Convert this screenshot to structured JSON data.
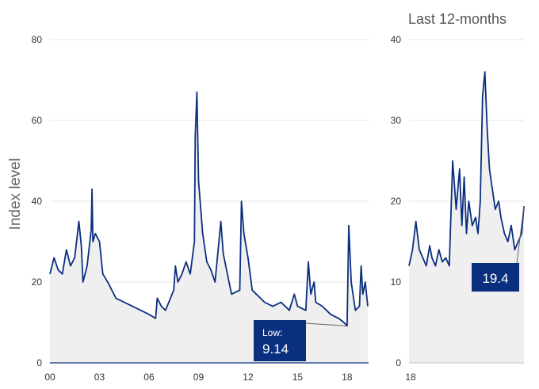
{
  "chart_data": [
    {
      "type": "area",
      "ylabel": "Index level",
      "ylim": [
        0,
        80
      ],
      "y_ticks": [
        "0",
        "20",
        "40",
        "60",
        "80"
      ],
      "x_tick_labels": [
        "00",
        "03",
        "06",
        "09",
        "12",
        "15",
        "18"
      ],
      "grid": "horizontal",
      "colors": {
        "line": "#0b2f7f",
        "fill": "#efefef",
        "callout": "#0b2f7f"
      },
      "annotation": {
        "label": "Low:",
        "value": "9.14"
      },
      "series": [
        {
          "x": [
            2000.0,
            2000.25,
            2000.5,
            2000.75,
            2001.0,
            2001.25,
            2001.5,
            2001.75,
            2001.9,
            2002.0,
            2002.25,
            2002.5,
            2002.55,
            2002.6,
            2002.75,
            2003.0,
            2003.2,
            2003.5,
            2003.75,
            2004.0,
            2004.5,
            2005.0,
            2005.5,
            2006.0,
            2006.4,
            2006.5,
            2006.75,
            2007.0,
            2007.5,
            2007.6,
            2007.75,
            2008.0,
            2008.25,
            2008.5,
            2008.75,
            2008.8,
            2008.9,
            2009.0,
            2009.25,
            2009.5,
            2009.75,
            2010.0,
            2010.35,
            2010.5,
            2010.75,
            2011.0,
            2011.5,
            2011.6,
            2011.75,
            2012.0,
            2012.25,
            2012.5,
            2012.75,
            2013.0,
            2013.5,
            2014.0,
            2014.5,
            2014.8,
            2015.0,
            2015.5,
            2015.65,
            2015.8,
            2016.0,
            2016.1,
            2016.5,
            2016.75,
            2017.0,
            2017.5,
            2017.8,
            2018.0,
            2018.1,
            2018.25,
            2018.5,
            2018.75,
            2018.85,
            2018.95,
            2019.1,
            2019.25
          ],
          "values": [
            22,
            26,
            23,
            22,
            28,
            24,
            26,
            35,
            29,
            20,
            24,
            33,
            43,
            30,
            32,
            30,
            22,
            20,
            18,
            16,
            15,
            14,
            13,
            12,
            11,
            16,
            14,
            13,
            18,
            24,
            20,
            22,
            25,
            22,
            30,
            56,
            67,
            45,
            32,
            25,
            23,
            20,
            35,
            27,
            22,
            17,
            18,
            40,
            32,
            26,
            18,
            17,
            16,
            15,
            14,
            15,
            13,
            17,
            14,
            13,
            25,
            17,
            20,
            15,
            14,
            13,
            12,
            11,
            10,
            9.14,
            34,
            20,
            13,
            14,
            24,
            17,
            20,
            14
          ]
        }
      ]
    },
    {
      "type": "area",
      "title": "Last 12-months",
      "ylim": [
        0,
        40
      ],
      "y_ticks": [
        "0",
        "10",
        "20",
        "30",
        "40"
      ],
      "x_tick_labels": [
        "18"
      ],
      "grid": "horizontal",
      "annotation": {
        "value": "19.4"
      },
      "series": [
        {
          "x": [
            0,
            0.03,
            0.06,
            0.09,
            0.12,
            0.15,
            0.18,
            0.2,
            0.23,
            0.26,
            0.29,
            0.32,
            0.35,
            0.38,
            0.41,
            0.44,
            0.46,
            0.48,
            0.5,
            0.52,
            0.55,
            0.58,
            0.6,
            0.62,
            0.64,
            0.66,
            0.68,
            0.7,
            0.72,
            0.75,
            0.78,
            0.8,
            0.83,
            0.86,
            0.89,
            0.92,
            0.95,
            0.98,
            1.0
          ],
          "values": [
            12,
            14,
            17.5,
            14,
            13,
            12,
            14.5,
            13,
            12,
            14,
            12.5,
            13,
            12,
            25,
            19,
            24,
            17,
            23,
            16,
            20,
            17,
            18,
            16,
            20,
            33,
            36,
            29,
            24,
            22,
            19,
            20,
            18,
            16,
            15,
            17,
            14,
            15,
            16,
            19.4
          ]
        }
      ]
    }
  ]
}
